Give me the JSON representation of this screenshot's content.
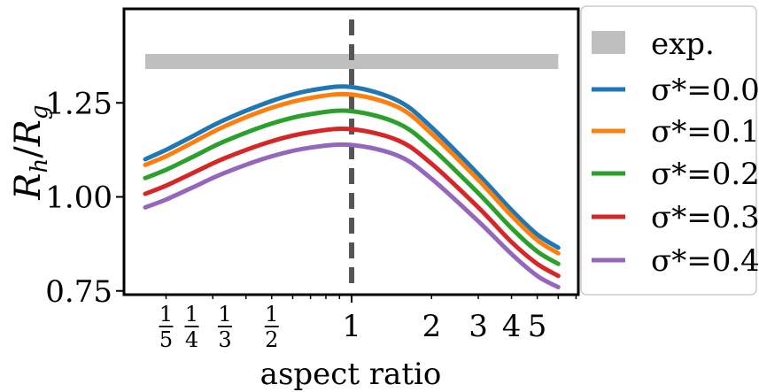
{
  "chart_data": {
    "type": "line",
    "xlabel": "aspect ratio",
    "ylabel": "R_h/R_g",
    "xscale": "log",
    "xlim": [
      0.1389,
      7.14
    ],
    "ylim": [
      0.74,
      1.5
    ],
    "yticks": [
      {
        "value": 0.75,
        "label": "0.75"
      },
      {
        "value": 1.0,
        "label": "1.00"
      },
      {
        "value": 1.25,
        "label": "1.25"
      }
    ],
    "xticks": [
      {
        "value": 0.2,
        "num": "1",
        "den": "5"
      },
      {
        "value": 0.25,
        "num": "1",
        "den": "4"
      },
      {
        "value": 0.3333,
        "num": "1",
        "den": "3"
      },
      {
        "value": 0.5,
        "num": "1",
        "den": "2"
      },
      {
        "value": 1,
        "label": "1"
      },
      {
        "value": 2,
        "label": "2"
      },
      {
        "value": 3,
        "label": "3"
      },
      {
        "value": 4,
        "label": "4"
      },
      {
        "value": 5,
        "label": "5"
      }
    ],
    "x": [
      0.167,
      0.2,
      0.25,
      0.333,
      0.5,
      0.7,
      1.0,
      1.5,
      2.0,
      3.0,
      4.0,
      5.0,
      6.0
    ],
    "series": [
      {
        "name": "σ*=0.0",
        "color": "#1f77b4",
        "values": [
          1.1,
          1.125,
          1.16,
          1.205,
          1.255,
          1.283,
          1.292,
          1.255,
          1.185,
          1.06,
          0.965,
          0.9,
          0.865
        ]
      },
      {
        "name": "σ*=0.1",
        "color": "#ff7f0e",
        "values": [
          1.085,
          1.108,
          1.143,
          1.188,
          1.237,
          1.263,
          1.272,
          1.238,
          1.168,
          1.045,
          0.95,
          0.885,
          0.85
        ]
      },
      {
        "name": "σ*=0.2",
        "color": "#2ca02c",
        "values": [
          1.05,
          1.072,
          1.105,
          1.148,
          1.195,
          1.22,
          1.228,
          1.195,
          1.13,
          1.01,
          0.917,
          0.855,
          0.822
        ]
      },
      {
        "name": "σ*=0.3",
        "color": "#d62728",
        "values": [
          1.008,
          1.03,
          1.062,
          1.103,
          1.148,
          1.172,
          1.18,
          1.15,
          1.088,
          0.972,
          0.88,
          0.822,
          0.79
        ]
      },
      {
        "name": "σ*=0.4",
        "color": "#9467bd",
        "values": [
          0.972,
          0.993,
          1.024,
          1.064,
          1.108,
          1.131,
          1.138,
          1.109,
          1.048,
          0.935,
          0.848,
          0.79,
          0.76
        ]
      }
    ],
    "exp_band": {
      "name": "exp.",
      "color": "#bfbfbf",
      "y_low": 1.34,
      "y_high": 1.38,
      "x_from": 0.167,
      "x_to": 6.0
    },
    "vline": {
      "x": 1,
      "color": "#555555"
    },
    "legend": {
      "placement": "right"
    }
  }
}
